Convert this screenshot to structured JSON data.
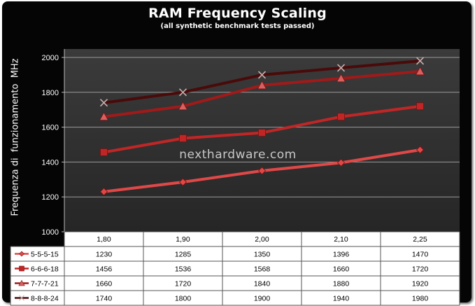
{
  "chart_data": {
    "type": "line",
    "title": "RAM Frequency Scaling",
    "subtitle": "(all synthetic benchmark tests passed)",
    "ylabel": "Frequenza di  funzionamento  MHz",
    "xlabel": "",
    "categories": [
      "1,80",
      "1,90",
      "2,00",
      "2,10",
      "2,25"
    ],
    "ylim": [
      1000,
      2000
    ],
    "yticks": [
      1000,
      1200,
      1400,
      1600,
      1800,
      2000
    ],
    "grid": true,
    "legend": "table-below",
    "watermark": "nexthardware.com",
    "series": [
      {
        "name": "5-5-5-15",
        "values": [
          1230,
          1285,
          1350,
          1396,
          1470
        ],
        "color": "#e04848",
        "marker": "diamond"
      },
      {
        "name": "6-6-6-18",
        "values": [
          1456,
          1536,
          1568,
          1660,
          1720
        ],
        "color": "#c02626",
        "marker": "square"
      },
      {
        "name": "7-7-7-21",
        "values": [
          1660,
          1720,
          1840,
          1880,
          1920
        ],
        "color": "#a01a1a",
        "marker": "triangle"
      },
      {
        "name": "8-8-8-24",
        "values": [
          1740,
          1800,
          1900,
          1940,
          1980
        ],
        "color": "#4a0a0a",
        "marker": "x"
      }
    ]
  },
  "colors": {
    "frame": "#050505",
    "plot_bg": "#3a3a3a",
    "grid": "#9a9a9a",
    "table_bg": "#ffffff"
  }
}
